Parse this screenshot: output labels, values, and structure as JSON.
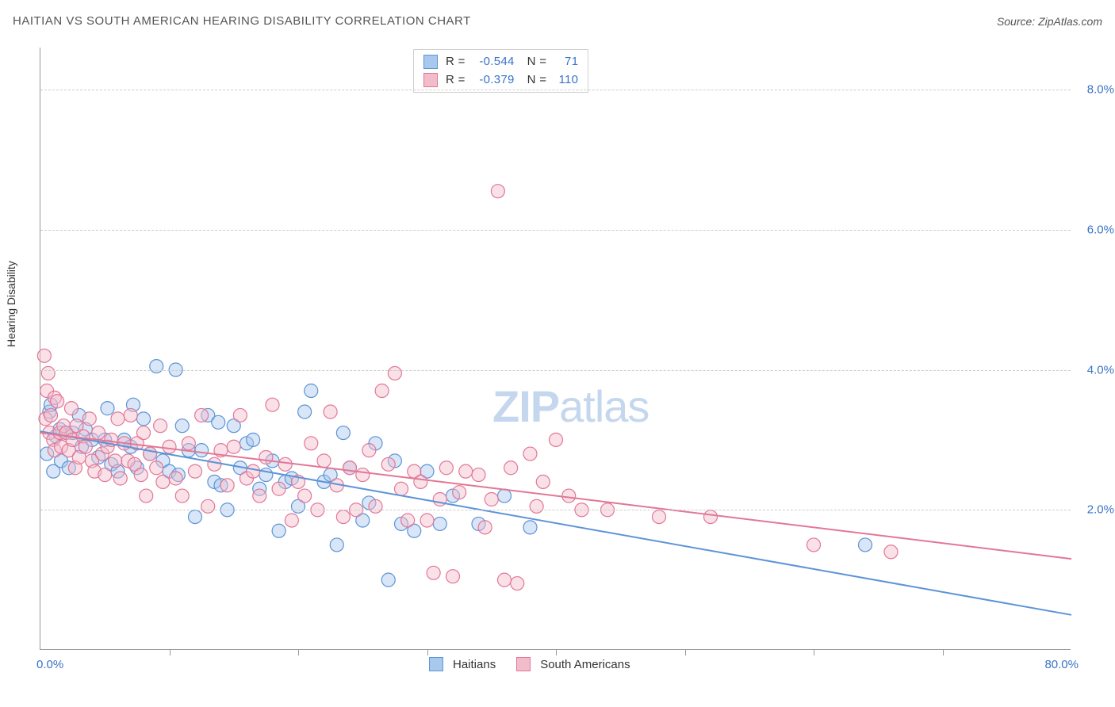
{
  "title": "HAITIAN VS SOUTH AMERICAN HEARING DISABILITY CORRELATION CHART",
  "source": "Source: ZipAtlas.com",
  "watermark_bold": "ZIP",
  "watermark_rest": "atlas",
  "ylabel": "Hearing Disability",
  "chart": {
    "type": "scatter",
    "xlim": [
      0,
      80
    ],
    "ylim": [
      0,
      8.6
    ],
    "x_unit": "%",
    "y_unit": "%",
    "x_ticks": [
      0,
      10,
      20,
      30,
      40,
      50,
      60,
      70,
      80
    ],
    "y_ticks": [
      2.0,
      4.0,
      6.0,
      8.0
    ],
    "x_tick_labels": {
      "min": "0.0%",
      "max": "80.0%"
    },
    "y_tick_labels": [
      "2.0%",
      "4.0%",
      "6.0%",
      "8.0%"
    ],
    "grid_color": "#cccccc",
    "axis_color": "#999999",
    "background_color": "#ffffff",
    "tick_label_color": "#3973c7",
    "marker_radius": 8.5,
    "marker_fill_opacity": 0.45,
    "trend_line_width": 2
  },
  "series": [
    {
      "name": "Haitians",
      "label": "Haitians",
      "color_stroke": "#5d94d6",
      "color_fill": "#a9c8ed",
      "R": "-0.544",
      "N": "71",
      "trend": {
        "y_at_x0": 3.12,
        "y_at_x80": 0.5
      },
      "points": [
        [
          0.5,
          2.8
        ],
        [
          0.7,
          3.4
        ],
        [
          0.8,
          3.5
        ],
        [
          1.0,
          2.55
        ],
        [
          1.2,
          3.05
        ],
        [
          1.5,
          3.15
        ],
        [
          1.6,
          2.7
        ],
        [
          2.0,
          3.1
        ],
        [
          2.2,
          2.6
        ],
        [
          2.5,
          3.1
        ],
        [
          3.0,
          3.35
        ],
        [
          3.2,
          2.9
        ],
        [
          3.5,
          3.15
        ],
        [
          4.0,
          3.0
        ],
        [
          4.5,
          2.75
        ],
        [
          5.0,
          3.0
        ],
        [
          5.2,
          3.45
        ],
        [
          5.5,
          2.65
        ],
        [
          6.0,
          2.55
        ],
        [
          6.5,
          3.0
        ],
        [
          7.0,
          2.9
        ],
        [
          7.2,
          3.5
        ],
        [
          7.5,
          2.6
        ],
        [
          8.0,
          3.3
        ],
        [
          8.5,
          2.8
        ],
        [
          9.0,
          4.05
        ],
        [
          9.5,
          2.7
        ],
        [
          10.0,
          2.55
        ],
        [
          10.5,
          4.0
        ],
        [
          10.7,
          2.5
        ],
        [
          11.0,
          3.2
        ],
        [
          11.5,
          2.85
        ],
        [
          12.0,
          1.9
        ],
        [
          12.5,
          2.85
        ],
        [
          13.0,
          3.35
        ],
        [
          13.5,
          2.4
        ],
        [
          13.8,
          3.25
        ],
        [
          14.0,
          2.35
        ],
        [
          14.5,
          2.0
        ],
        [
          15.0,
          3.2
        ],
        [
          15.5,
          2.6
        ],
        [
          16.0,
          2.95
        ],
        [
          16.5,
          3.0
        ],
        [
          17.0,
          2.3
        ],
        [
          17.5,
          2.5
        ],
        [
          18.0,
          2.7
        ],
        [
          18.5,
          1.7
        ],
        [
          19.0,
          2.4
        ],
        [
          19.5,
          2.45
        ],
        [
          20.0,
          2.05
        ],
        [
          20.5,
          3.4
        ],
        [
          21.0,
          3.7
        ],
        [
          22.0,
          2.4
        ],
        [
          22.5,
          2.5
        ],
        [
          23.0,
          1.5
        ],
        [
          23.5,
          3.1
        ],
        [
          24.0,
          2.6
        ],
        [
          25.0,
          1.85
        ],
        [
          25.5,
          2.1
        ],
        [
          26.0,
          2.95
        ],
        [
          27.0,
          1.0
        ],
        [
          27.5,
          2.7
        ],
        [
          28.0,
          1.8
        ],
        [
          29.0,
          1.7
        ],
        [
          30.0,
          2.55
        ],
        [
          31.0,
          1.8
        ],
        [
          32.0,
          2.2
        ],
        [
          34.0,
          1.8
        ],
        [
          36.0,
          2.2
        ],
        [
          38.0,
          1.75
        ],
        [
          64.0,
          1.5
        ]
      ]
    },
    {
      "name": "South Americans",
      "label": "South Americans",
      "color_stroke": "#e27797",
      "color_fill": "#f3bccb",
      "R": "-0.379",
      "N": "110",
      "trend": {
        "y_at_x0": 3.1,
        "y_at_x80": 1.3
      },
      "points": [
        [
          0.3,
          4.2
        ],
        [
          0.4,
          3.3
        ],
        [
          0.5,
          3.7
        ],
        [
          0.6,
          3.95
        ],
        [
          0.7,
          3.1
        ],
        [
          0.8,
          3.35
        ],
        [
          1.0,
          3.0
        ],
        [
          1.1,
          2.85
        ],
        [
          1.1,
          3.6
        ],
        [
          1.3,
          3.55
        ],
        [
          1.5,
          3.1
        ],
        [
          1.6,
          2.9
        ],
        [
          1.8,
          3.2
        ],
        [
          2.0,
          3.1
        ],
        [
          2.2,
          2.85
        ],
        [
          2.4,
          3.45
        ],
        [
          2.5,
          3.0
        ],
        [
          2.7,
          2.6
        ],
        [
          2.8,
          3.2
        ],
        [
          3.0,
          2.75
        ],
        [
          3.3,
          3.05
        ],
        [
          3.5,
          2.9
        ],
        [
          3.8,
          3.3
        ],
        [
          4.0,
          2.7
        ],
        [
          4.2,
          2.55
        ],
        [
          4.5,
          3.1
        ],
        [
          4.8,
          2.8
        ],
        [
          5.0,
          2.5
        ],
        [
          5.2,
          2.9
        ],
        [
          5.5,
          3.0
        ],
        [
          5.8,
          2.7
        ],
        [
          6.0,
          3.3
        ],
        [
          6.2,
          2.45
        ],
        [
          6.5,
          2.95
        ],
        [
          6.8,
          2.7
        ],
        [
          7.0,
          3.35
        ],
        [
          7.3,
          2.65
        ],
        [
          7.5,
          2.95
        ],
        [
          7.8,
          2.5
        ],
        [
          8.0,
          3.1
        ],
        [
          8.2,
          2.2
        ],
        [
          8.5,
          2.8
        ],
        [
          9.0,
          2.6
        ],
        [
          9.3,
          3.2
        ],
        [
          9.5,
          2.4
        ],
        [
          10.0,
          2.9
        ],
        [
          10.5,
          2.45
        ],
        [
          11.0,
          2.2
        ],
        [
          11.5,
          2.95
        ],
        [
          12.0,
          2.55
        ],
        [
          12.5,
          3.35
        ],
        [
          13.0,
          2.05
        ],
        [
          13.5,
          2.65
        ],
        [
          14.0,
          2.85
        ],
        [
          14.5,
          2.35
        ],
        [
          15.0,
          2.9
        ],
        [
          15.5,
          3.35
        ],
        [
          16.0,
          2.45
        ],
        [
          16.5,
          2.55
        ],
        [
          17.0,
          2.2
        ],
        [
          17.5,
          2.75
        ],
        [
          18.0,
          3.5
        ],
        [
          18.5,
          2.3
        ],
        [
          19.0,
          2.65
        ],
        [
          19.5,
          1.85
        ],
        [
          20.0,
          2.4
        ],
        [
          20.5,
          2.2
        ],
        [
          21.0,
          2.95
        ],
        [
          21.5,
          2.0
        ],
        [
          22.0,
          2.7
        ],
        [
          22.5,
          3.4
        ],
        [
          23.0,
          2.35
        ],
        [
          23.5,
          1.9
        ],
        [
          24.0,
          2.6
        ],
        [
          24.5,
          2.0
        ],
        [
          25.0,
          2.5
        ],
        [
          25.5,
          2.85
        ],
        [
          26.0,
          2.05
        ],
        [
          26.5,
          3.7
        ],
        [
          27.0,
          2.65
        ],
        [
          27.5,
          3.95
        ],
        [
          28.0,
          2.3
        ],
        [
          28.5,
          1.85
        ],
        [
          29.0,
          2.55
        ],
        [
          29.5,
          2.4
        ],
        [
          30.0,
          1.85
        ],
        [
          30.5,
          1.1
        ],
        [
          31.0,
          2.15
        ],
        [
          31.5,
          2.6
        ],
        [
          32.0,
          1.05
        ],
        [
          32.5,
          2.25
        ],
        [
          33.0,
          2.55
        ],
        [
          34.0,
          2.5
        ],
        [
          34.5,
          1.75
        ],
        [
          35.0,
          2.15
        ],
        [
          35.5,
          6.55
        ],
        [
          36.0,
          1.0
        ],
        [
          36.5,
          2.6
        ],
        [
          37.0,
          0.95
        ],
        [
          38.0,
          2.8
        ],
        [
          38.5,
          2.05
        ],
        [
          39.0,
          2.4
        ],
        [
          40.0,
          3.0
        ],
        [
          41.0,
          2.2
        ],
        [
          42.0,
          2.0
        ],
        [
          44.0,
          2.0
        ],
        [
          48.0,
          1.9
        ],
        [
          52.0,
          1.9
        ],
        [
          60.0,
          1.5
        ],
        [
          66.0,
          1.4
        ]
      ]
    }
  ],
  "legend_bottom": {
    "items": [
      "Haitians",
      "South Americans"
    ]
  }
}
